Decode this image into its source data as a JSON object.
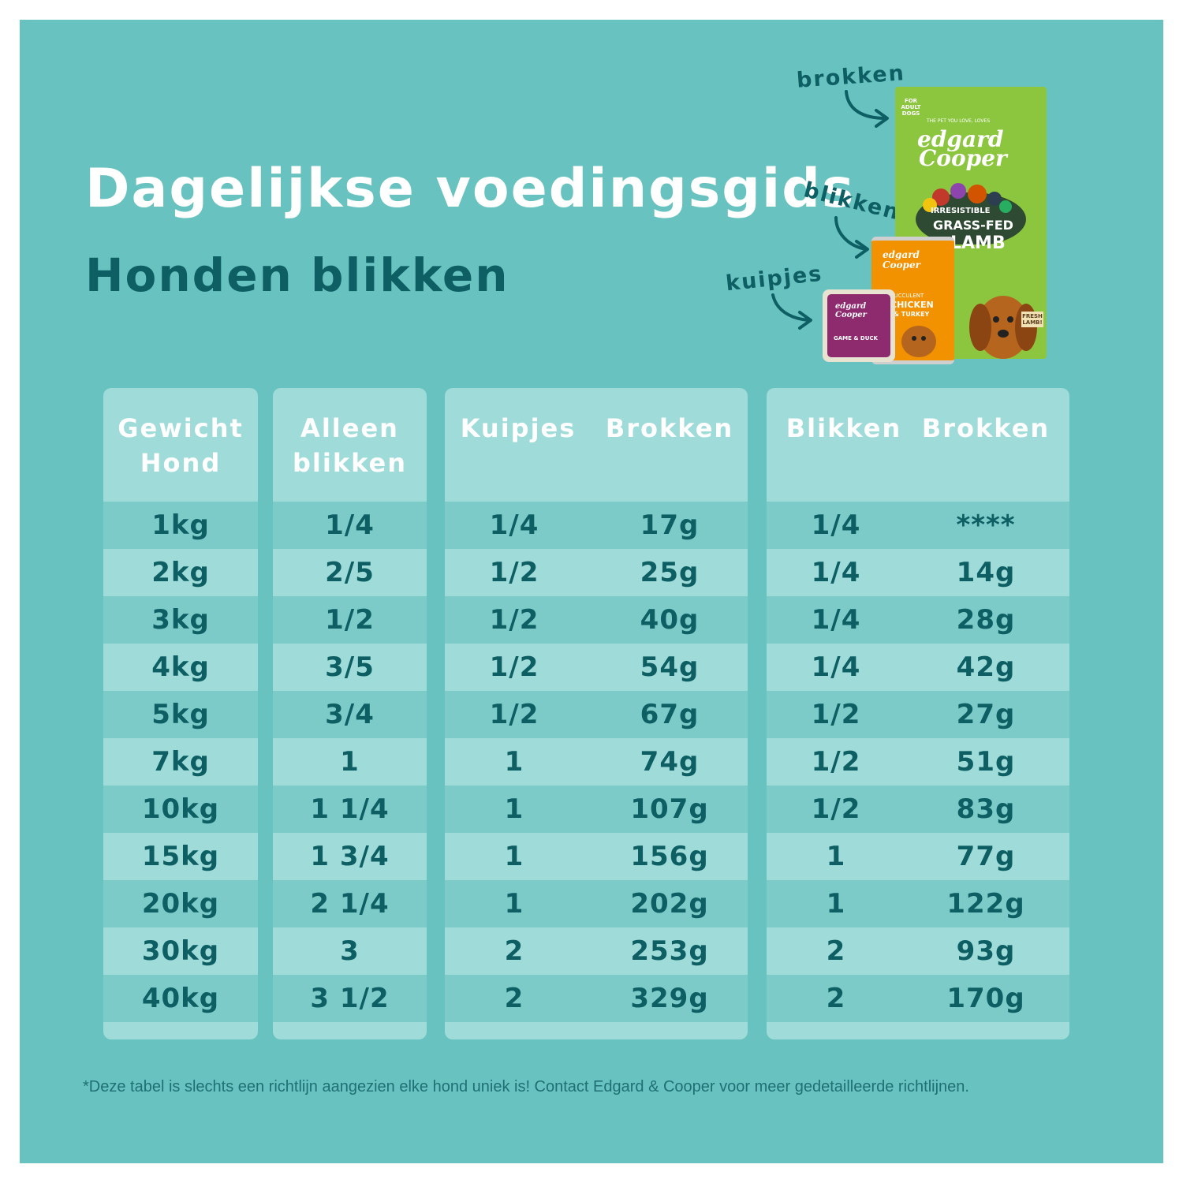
{
  "header": {
    "title": "Dagelijkse voedingsgids",
    "subtitle": "Honden blikken"
  },
  "products": {
    "labels": {
      "brokken": "brokken",
      "blikken": "blikken",
      "kuipjes": "kuipjes"
    },
    "bag": {
      "badge": "FOR ADULT DOGS",
      "tagline": "THE PET YOU LOVE, LOVES",
      "brand_line1": "edgard",
      "brand_line2": "Cooper",
      "flavor_line1": "IRRESISTIBLE",
      "flavor_line2": "GRASS-FED",
      "flavor_line3": "LAMB",
      "sign": "FRESH LAMB!"
    },
    "can": {
      "brand": "edgard Cooper",
      "flavor_line1": "SUCCULENT",
      "flavor_line2": "CHICKEN",
      "flavor_line3": "& TURKEY"
    },
    "tray": {
      "brand": "edgard Cooper",
      "flavor": "GAME & DUCK"
    }
  },
  "tables": {
    "weight": {
      "headers": [
        "Gewicht",
        "Hond"
      ],
      "rows": [
        "1kg",
        "2kg",
        "3kg",
        "4kg",
        "5kg",
        "7kg",
        "10kg",
        "15kg",
        "20kg",
        "30kg",
        "40kg"
      ]
    },
    "cans_only": {
      "headers": [
        "Alleen",
        "blikken"
      ],
      "rows": [
        "1/4",
        "2/5",
        "1/2",
        "3/5",
        "3/4",
        "1",
        "1 1/4",
        "1 3/4",
        "2 1/4",
        "3",
        "3 1/2"
      ]
    },
    "trays_kibble": {
      "headers": [
        "Kuipjes",
        "Brokken"
      ],
      "rows": [
        [
          "1/4",
          "17g"
        ],
        [
          "1/2",
          "25g"
        ],
        [
          "1/2",
          "40g"
        ],
        [
          "1/2",
          "54g"
        ],
        [
          "1/2",
          "67g"
        ],
        [
          "1",
          "74g"
        ],
        [
          "1",
          "107g"
        ],
        [
          "1",
          "156g"
        ],
        [
          "1",
          "202g"
        ],
        [
          "2",
          "253g"
        ],
        [
          "2",
          "329g"
        ]
      ]
    },
    "cans_kibble": {
      "headers": [
        "Blikken",
        "Brokken"
      ],
      "rows": [
        [
          "1/4",
          "****"
        ],
        [
          "1/4",
          "14g"
        ],
        [
          "1/4",
          "28g"
        ],
        [
          "1/4",
          "42g"
        ],
        [
          "1/2",
          "27g"
        ],
        [
          "1/2",
          "51g"
        ],
        [
          "1/2",
          "83g"
        ],
        [
          "1",
          "77g"
        ],
        [
          "1",
          "122g"
        ],
        [
          "2",
          "93g"
        ],
        [
          "2",
          "170g"
        ]
      ]
    }
  },
  "footnote": "*Deze tabel is slechts een richtlijn aangezien elke hond uniek is! Contact Edgard & Cooper voor meer gedetailleerde richtlijnen.",
  "colors": {
    "background": "#68c3c0",
    "table_light": "#9fdbd8",
    "table_dark": "#7ccbc8",
    "text_dark": "#0d5f63",
    "bag_green": "#8cc63f",
    "can_orange": "#f39200",
    "tray_purple": "#8e2a6e"
  }
}
